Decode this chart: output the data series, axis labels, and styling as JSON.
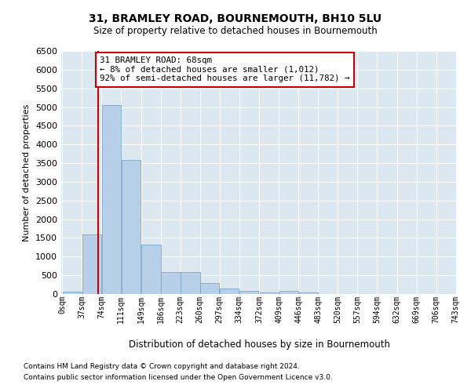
{
  "title": "31, BRAMLEY ROAD, BOURNEMOUTH, BH10 5LU",
  "subtitle": "Size of property relative to detached houses in Bournemouth",
  "xlabel": "Distribution of detached houses by size in Bournemouth",
  "ylabel": "Number of detached properties",
  "footer_line1": "Contains HM Land Registry data © Crown copyright and database right 2024.",
  "footer_line2": "Contains public sector information licensed under the Open Government Licence v3.0.",
  "annotation_title": "31 BRAMLEY ROAD: 68sqm",
  "annotation_line1": "← 8% of detached houses are smaller (1,012)",
  "annotation_line2": "92% of semi-detached houses are larger (11,782) →",
  "property_size": 68,
  "bin_edges": [
    0,
    37,
    74,
    111,
    149,
    186,
    223,
    260,
    297,
    334,
    372,
    409,
    446,
    483,
    520,
    557,
    594,
    632,
    669,
    706,
    743
  ],
  "bar_heights": [
    55,
    1600,
    5050,
    3580,
    1320,
    580,
    580,
    285,
    140,
    75,
    48,
    90,
    45,
    4,
    3,
    2,
    2,
    1,
    1,
    1
  ],
  "bar_color": "#b8cfe8",
  "bar_edge_color": "#6e9ec5",
  "red_line_color": "#cc0000",
  "background_color": "#dce8f0",
  "ylim": [
    0,
    6500
  ],
  "yticks": [
    0,
    500,
    1000,
    1500,
    2000,
    2500,
    3000,
    3500,
    4000,
    4500,
    5000,
    5500,
    6000,
    6500
  ]
}
